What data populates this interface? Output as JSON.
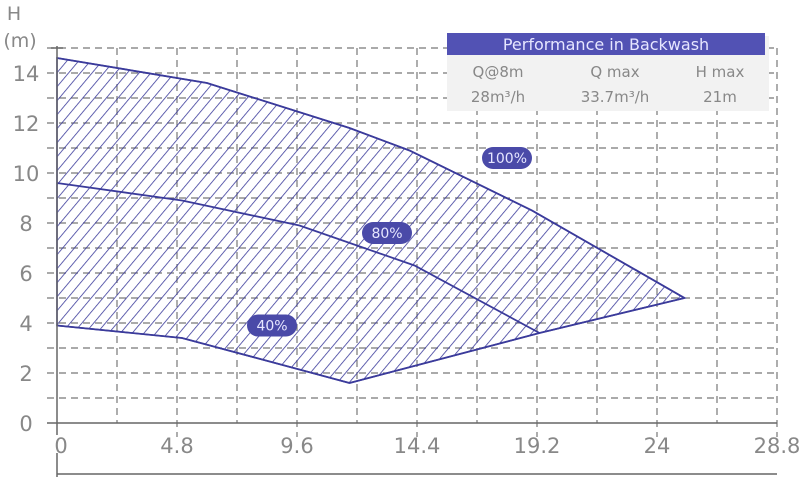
{
  "chart_data": {
    "type": "area",
    "xlabel": "",
    "ylabel": "H\n(m)",
    "ylabel_lines": [
      "H",
      "(m)"
    ],
    "xlim": [
      0,
      28.8
    ],
    "ylim": [
      0,
      15
    ],
    "x_ticks": [
      "0",
      "4.8",
      "9.6",
      "14.4",
      "19.2",
      "24",
      "28.8"
    ],
    "x_tick_values": [
      0,
      4.8,
      9.6,
      14.4,
      19.2,
      24,
      28.8
    ],
    "y_ticks": [
      "0",
      "2",
      "4",
      "6",
      "8",
      "10",
      "12",
      "14"
    ],
    "y_tick_values": [
      0,
      2,
      4,
      6,
      8,
      10,
      12,
      14
    ],
    "grid": true,
    "series": [
      {
        "name": "100%",
        "x": [
          0,
          6,
          11.7,
          14.1,
          19,
          25.1
        ],
        "y": [
          14.6,
          13.6,
          11.8,
          10.9,
          8.5,
          5.0
        ],
        "label_at": [
          18,
          10.6
        ]
      },
      {
        "name": "80%",
        "x": [
          0,
          5,
          9.7,
          14.3,
          19.3
        ],
        "y": [
          9.6,
          8.9,
          7.9,
          6.3,
          3.6
        ],
        "label_at": [
          13.2,
          7.6
        ]
      },
      {
        "name": "40%",
        "x": [
          0,
          5,
          11.7
        ],
        "y": [
          3.9,
          3.4,
          1.6
        ],
        "label_at": [
          8.6,
          3.9
        ]
      }
    ],
    "lower_boundary": {
      "x": [
        11.7,
        19.3,
        25.1
      ],
      "y": [
        1.6,
        3.6,
        5.0
      ]
    },
    "colors": {
      "curve": "#3b3b9b",
      "hatch": "#3b3b9b",
      "label_bg": "#4a4aa8",
      "grid": "#777777",
      "tick_text": "#888888"
    }
  },
  "info_table": {
    "title": "Performance in Backwash",
    "headers": [
      "Q@8m",
      "Q max",
      "H max"
    ],
    "values": [
      "28m³/h",
      "33.7m³/h",
      "21m"
    ],
    "colors": {
      "title_bg": "#5252b4",
      "title_text": "#e6e6ff",
      "body_bg": "#f2f2f2",
      "body_text": "#888888"
    }
  }
}
